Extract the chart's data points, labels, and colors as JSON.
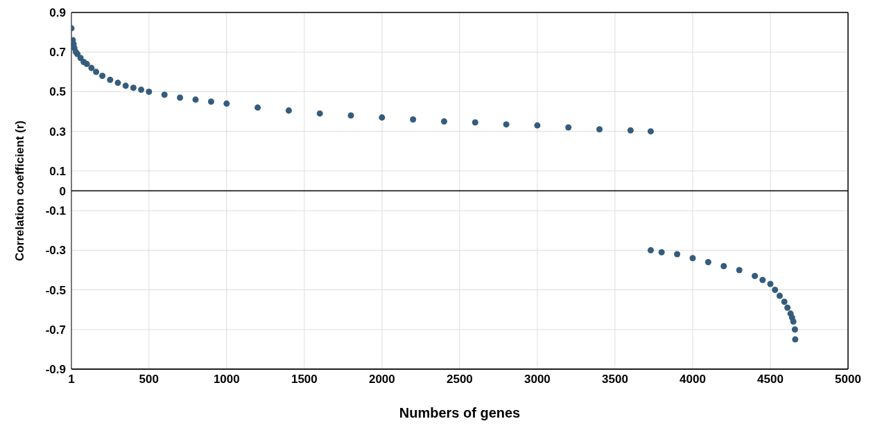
{
  "chart_data": {
    "type": "scatter",
    "xlabel": "Numbers of genes",
    "ylabel": "Correlation coefficient (r)",
    "xlim": [
      1,
      5000
    ],
    "xticks": [
      1,
      500,
      1000,
      1500,
      2000,
      2500,
      3000,
      3500,
      4000,
      4500,
      5000
    ],
    "ylim": [
      -0.9,
      0.9
    ],
    "yticks": [
      0.9,
      0.7,
      0.5,
      0.3,
      0.1,
      0,
      -0.1,
      -0.3,
      -0.5,
      -0.7,
      -0.9
    ],
    "grid": true,
    "marker": "circle",
    "ref_lines": [
      {
        "axis": "y",
        "value": 0,
        "color": "#000000"
      }
    ],
    "series": [
      {
        "color": "#355c7d",
        "x": [
          1,
          10,
          15,
          20,
          30,
          40,
          60,
          80,
          100,
          130,
          160,
          200,
          250,
          300,
          350,
          400,
          450,
          500,
          600,
          700,
          800,
          900,
          1000,
          1200,
          1400,
          1600,
          1800,
          2000,
          2200,
          2400,
          2600,
          2800,
          3000,
          3200,
          3400,
          3600,
          3730
        ],
        "values": [
          0.82,
          0.76,
          0.74,
          0.72,
          0.7,
          0.69,
          0.67,
          0.65,
          0.64,
          0.62,
          0.6,
          0.58,
          0.56,
          0.545,
          0.53,
          0.52,
          0.51,
          0.5,
          0.485,
          0.47,
          0.46,
          0.45,
          0.44,
          0.42,
          0.405,
          0.39,
          0.38,
          0.37,
          0.36,
          0.35,
          0.345,
          0.335,
          0.33,
          0.32,
          0.31,
          0.305,
          0.3
        ]
      },
      {
        "color": "#355c7d",
        "x": [
          3730,
          3800,
          3900,
          4000,
          4100,
          4200,
          4300,
          4400,
          4450,
          4500,
          4530,
          4560,
          4590,
          4610,
          4630,
          4640,
          4648,
          4658,
          4660
        ],
        "values": [
          -0.3,
          -0.31,
          -0.32,
          -0.34,
          -0.36,
          -0.38,
          -0.4,
          -0.43,
          -0.45,
          -0.47,
          -0.5,
          -0.53,
          -0.56,
          -0.59,
          -0.62,
          -0.64,
          -0.66,
          -0.7,
          -0.75
        ]
      }
    ]
  }
}
